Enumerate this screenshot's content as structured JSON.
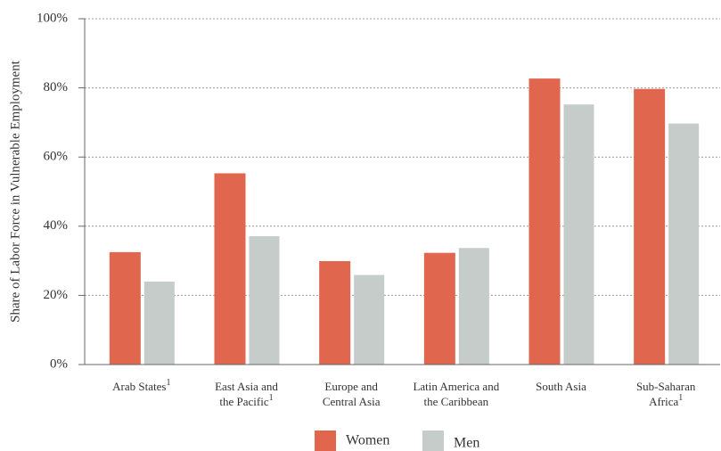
{
  "chart_data": {
    "type": "bar",
    "y_label": "Share of Labor Force in Vulnerable Employment",
    "categories": [
      {
        "lines": [
          "Arab States"
        ],
        "note": "1"
      },
      {
        "lines": [
          "East Asia and",
          "the Pacific"
        ],
        "note": "1"
      },
      {
        "lines": [
          "Europe and",
          "Central Asia"
        ]
      },
      {
        "lines": [
          "Latin America and",
          "the Caribbean"
        ]
      },
      {
        "lines": [
          "South Asia"
        ]
      },
      {
        "lines": [
          "Sub-Saharan",
          "Africa"
        ],
        "note": "1"
      }
    ],
    "series": [
      {
        "name": "Women",
        "color": "#e0664e",
        "values": [
          32.5,
          55.3,
          29.9,
          32.3,
          82.7,
          79.7
        ]
      },
      {
        "name": "Men",
        "color": "#c5ccc9",
        "values": [
          24.0,
          37.1,
          25.9,
          33.7,
          75.2,
          69.7
        ]
      }
    ],
    "ylim": [
      0,
      100
    ],
    "yticks": [
      {
        "value": 0,
        "label": "0%"
      },
      {
        "value": 20,
        "label": "20%"
      },
      {
        "value": 40,
        "label": "40%"
      },
      {
        "value": 60,
        "label": "60%"
      },
      {
        "value": 80,
        "label": "80%"
      },
      {
        "value": 100,
        "label": "100%"
      }
    ],
    "grid": true
  }
}
